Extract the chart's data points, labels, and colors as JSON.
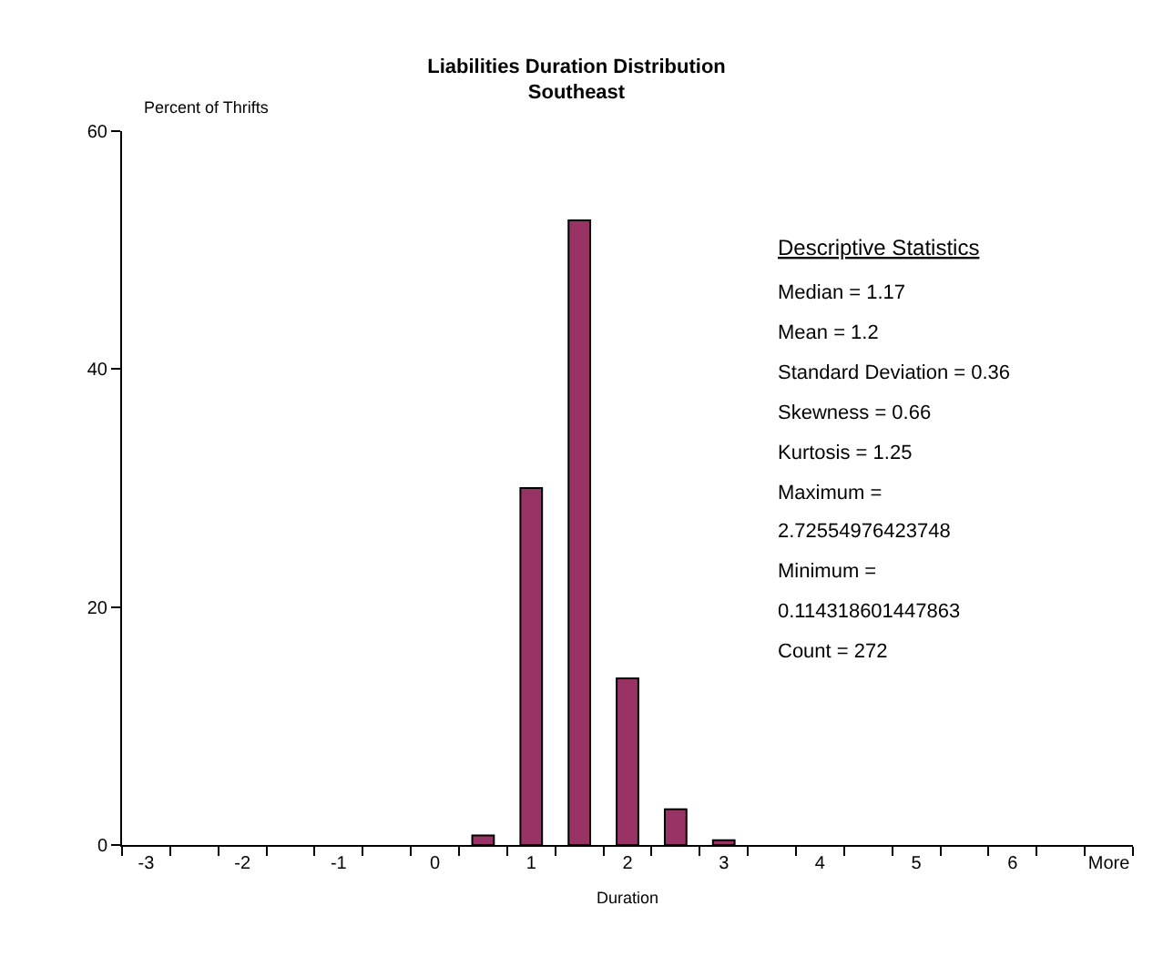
{
  "chart_data": {
    "type": "bar",
    "title": "Liabilities Duration Distribution",
    "subtitle": "Southeast",
    "xlabel": "Duration",
    "ylabel": "Percent of Thrifts",
    "categories": [
      "-3",
      null,
      "-2",
      null,
      "-1",
      null,
      "0",
      null,
      "1",
      null,
      "2",
      null,
      "3",
      null,
      "4",
      null,
      "5",
      null,
      "6",
      null,
      "More"
    ],
    "values": [
      0,
      0,
      0,
      0,
      0,
      0,
      0,
      0.8,
      30,
      52.5,
      14,
      3,
      0.4,
      0,
      0,
      0,
      0,
      0,
      0,
      0,
      0
    ],
    "color": "#993366",
    "ylim": [
      0,
      60
    ],
    "yticks": [
      0,
      20,
      40,
      60
    ],
    "annotations": [
      "Descriptive Statistics",
      "Median = 1.17",
      "Mean = 1.2",
      "Standard Deviation = 0.36",
      "Skewness = 0.66",
      "Kurtosis = 1.25",
      "Maximum =",
      "2.72554976423748",
      "Minimum =",
      "0.114318601447863",
      "Count = 272"
    ]
  }
}
